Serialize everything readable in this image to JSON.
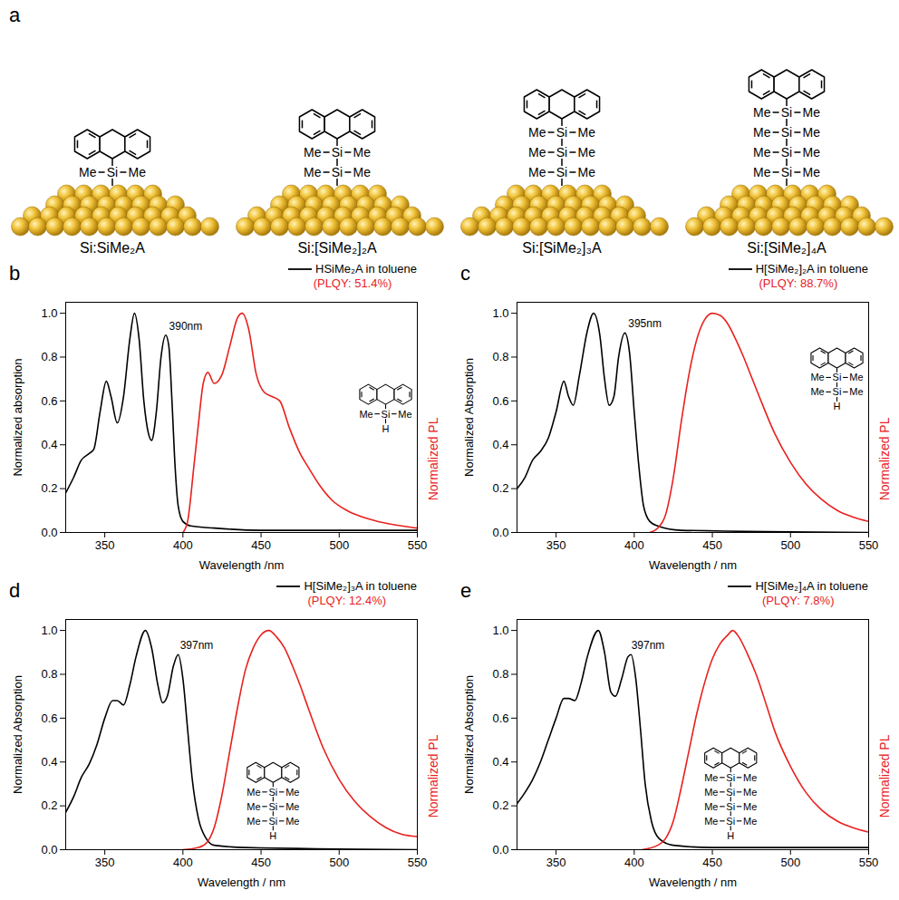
{
  "diagram": {
    "letter": "a",
    "side_group": "Me",
    "atom": "Si",
    "structures": [
      {
        "label": "Si:SiMe₂A",
        "units": 1
      },
      {
        "label": "Si:[SiMe₂]₂A",
        "units": 2
      },
      {
        "label": "Si:[SiMe₂]₃A",
        "units": 3
      },
      {
        "label": "Si:[SiMe₂]₄A",
        "units": 4
      }
    ]
  },
  "chart_data": [
    {
      "panel": "b",
      "type": "line",
      "xlabel": "Wavelength /nm",
      "ylabel": "Normalized absorption",
      "y2label": "Normalized PL",
      "xlim": [
        325,
        550
      ],
      "xticks": [
        350,
        400,
        450,
        500,
        550
      ],
      "ylim": [
        0,
        1.05
      ],
      "yticks": [
        {
          "value": 0,
          "label": "0.0"
        },
        0.2,
        0.4,
        0.6,
        0.8,
        {
          "value": 1,
          "label": "1.0"
        }
      ],
      "legend": "top-right",
      "series": [
        {
          "name": "HSiMe₂A in toluene",
          "color": "#000000",
          "x": [
            325,
            330,
            335,
            340,
            343,
            347,
            351,
            354,
            358,
            362,
            366,
            369,
            372,
            375,
            378,
            380,
            383,
            386,
            389,
            391,
            393,
            395,
            397,
            400,
            405,
            420,
            450,
            500,
            550
          ],
          "values": [
            0.18,
            0.25,
            0.33,
            0.36,
            0.38,
            0.55,
            0.69,
            0.62,
            0.5,
            0.62,
            0.88,
            1.0,
            0.88,
            0.6,
            0.45,
            0.42,
            0.55,
            0.8,
            0.9,
            0.85,
            0.6,
            0.3,
            0.12,
            0.05,
            0.03,
            0.02,
            0.01,
            0.01,
            0.01
          ]
        },
        {
          "color": "#e8211e",
          "x": [
            400,
            403,
            407,
            410,
            413,
            416,
            420,
            425,
            430,
            435,
            438,
            442,
            447,
            452,
            457,
            462,
            468,
            475,
            480,
            487,
            495,
            505,
            515,
            525,
            540,
            550
          ],
          "values": [
            0,
            0.05,
            0.3,
            0.5,
            0.68,
            0.73,
            0.68,
            0.72,
            0.85,
            0.98,
            1.0,
            0.93,
            0.72,
            0.64,
            0.62,
            0.6,
            0.48,
            0.36,
            0.3,
            0.22,
            0.15,
            0.1,
            0.07,
            0.05,
            0.03,
            0.02
          ]
        }
      ],
      "annotations": [
        {
          "text": "390nm",
          "x": 390,
          "y": 0.9
        },
        {
          "text": "(PLQY: 51.4%)",
          "color": "#e8211e"
        }
      ],
      "inset": {
        "units": 1,
        "terminal": "H"
      }
    },
    {
      "panel": "c",
      "type": "line",
      "xlabel": "Wavelength / nm",
      "ylabel": "Normalized Absorption",
      "y2label": "Normalized PL",
      "xlim": [
        325,
        550
      ],
      "xticks": [
        350,
        400,
        450,
        500,
        550
      ],
      "ylim": [
        0,
        1.05
      ],
      "yticks": [
        {
          "value": 0,
          "label": "0.0"
        },
        0.2,
        0.4,
        0.6,
        0.8,
        {
          "value": 1,
          "label": "1.0"
        }
      ],
      "legend": "top-right",
      "series": [
        {
          "name": "H[SiMe₂]₂A in toluene",
          "color": "#000000",
          "x": [
            325,
            330,
            335,
            340,
            345,
            350,
            355,
            358,
            361,
            365,
            370,
            374,
            378,
            381,
            384,
            387,
            390,
            394,
            397,
            400,
            403,
            406,
            410,
            415,
            430,
            550
          ],
          "values": [
            0.2,
            0.25,
            0.33,
            0.37,
            0.43,
            0.55,
            0.69,
            0.62,
            0.58,
            0.72,
            0.92,
            1.0,
            0.9,
            0.7,
            0.58,
            0.62,
            0.8,
            0.91,
            0.82,
            0.55,
            0.3,
            0.12,
            0.05,
            0.03,
            0.01,
            0
          ]
        },
        {
          "color": "#e8211e",
          "x": [
            410,
            415,
            420,
            425,
            430,
            435,
            440,
            445,
            450,
            455,
            460,
            465,
            470,
            475,
            480,
            490,
            500,
            510,
            520,
            530,
            540,
            550
          ],
          "values": [
            0,
            0.02,
            0.08,
            0.25,
            0.5,
            0.72,
            0.88,
            0.97,
            1.0,
            0.99,
            0.95,
            0.88,
            0.8,
            0.71,
            0.62,
            0.45,
            0.32,
            0.22,
            0.15,
            0.1,
            0.07,
            0.05
          ]
        }
      ],
      "annotations": [
        {
          "text": "395nm",
          "x": 395,
          "y": 0.91
        },
        {
          "text": "(PLQY: 88.7%)",
          "color": "#e8211e"
        }
      ],
      "inset": {
        "units": 2,
        "terminal": "H"
      }
    },
    {
      "panel": "d",
      "type": "line",
      "xlabel": "Wavelength / nm",
      "ylabel": "Normalized Absorption",
      "y2label": "Normalized PL",
      "xlim": [
        325,
        550
      ],
      "xticks": [
        350,
        400,
        450,
        500,
        550
      ],
      "ylim": [
        0,
        1.05
      ],
      "yticks": [
        {
          "value": 0,
          "label": "0.0"
        },
        0.2,
        0.4,
        0.6,
        0.8,
        {
          "value": 1,
          "label": "1.0"
        }
      ],
      "legend": "top-right",
      "series": [
        {
          "name": "H[SiMe₂]₃A in toluene",
          "color": "#000000",
          "x": [
            325,
            330,
            335,
            340,
            345,
            350,
            355,
            358,
            362,
            366,
            370,
            376,
            380,
            384,
            387,
            390,
            394,
            397,
            400,
            403,
            406,
            410,
            415,
            420,
            440,
            550
          ],
          "values": [
            0.17,
            0.24,
            0.33,
            0.39,
            0.48,
            0.6,
            0.68,
            0.68,
            0.66,
            0.75,
            0.88,
            1.0,
            0.92,
            0.75,
            0.67,
            0.7,
            0.84,
            0.89,
            0.78,
            0.55,
            0.32,
            0.14,
            0.05,
            0.02,
            0.01,
            0
          ]
        },
        {
          "color": "#e8211e",
          "x": [
            400,
            410,
            415,
            420,
            425,
            430,
            435,
            440,
            445,
            450,
            455,
            460,
            465,
            470,
            475,
            480,
            490,
            500,
            510,
            520,
            530,
            540,
            550
          ],
          "values": [
            0,
            0.01,
            0.03,
            0.1,
            0.25,
            0.45,
            0.65,
            0.82,
            0.92,
            0.98,
            1.0,
            0.97,
            0.92,
            0.84,
            0.75,
            0.65,
            0.46,
            0.32,
            0.22,
            0.15,
            0.1,
            0.07,
            0.06
          ]
        }
      ],
      "annotations": [
        {
          "text": "397nm",
          "x": 397,
          "y": 0.89
        },
        {
          "text": "(PLQY: 12.4%)",
          "color": "#e8211e"
        }
      ],
      "inset": {
        "units": 3,
        "terminal": "H"
      }
    },
    {
      "panel": "e",
      "type": "line",
      "xlabel": "Wavelength / nm",
      "ylabel": "Normalized Absorption",
      "y2label": "Normalized PL",
      "xlim": [
        325,
        550
      ],
      "xticks": [
        350,
        400,
        450,
        500,
        550
      ],
      "ylim": [
        0,
        1.05
      ],
      "yticks": [
        {
          "value": 0,
          "label": "0.0"
        },
        0.2,
        0.4,
        0.6,
        0.8,
        {
          "value": 1,
          "label": "1.0"
        }
      ],
      "legend": "top-right",
      "series": [
        {
          "name": "H[SiMe₂]₄A in toluene",
          "color": "#000000",
          "x": [
            325,
            330,
            335,
            340,
            345,
            350,
            355,
            358,
            362,
            366,
            370,
            377,
            381,
            385,
            388,
            392,
            396,
            398,
            401,
            404,
            407,
            411,
            416,
            425,
            450,
            550
          ],
          "values": [
            0.21,
            0.26,
            0.32,
            0.4,
            0.5,
            0.6,
            0.69,
            0.69,
            0.68,
            0.76,
            0.88,
            1.0,
            0.9,
            0.72,
            0.7,
            0.78,
            0.88,
            0.89,
            0.78,
            0.55,
            0.3,
            0.13,
            0.05,
            0.02,
            0.01,
            0.01
          ]
        },
        {
          "color": "#e8211e",
          "x": [
            405,
            415,
            420,
            425,
            430,
            435,
            440,
            445,
            450,
            455,
            460,
            463,
            467,
            472,
            478,
            485,
            490,
            500,
            510,
            520,
            530,
            540,
            550
          ],
          "values": [
            0,
            0.02,
            0.05,
            0.13,
            0.28,
            0.45,
            0.62,
            0.76,
            0.87,
            0.94,
            0.98,
            1.0,
            0.97,
            0.9,
            0.8,
            0.65,
            0.54,
            0.38,
            0.26,
            0.18,
            0.13,
            0.1,
            0.08
          ]
        }
      ],
      "annotations": [
        {
          "text": "397nm",
          "x": 397,
          "y": 0.89
        },
        {
          "text": "(PLQY: 7.8%)",
          "color": "#e8211e"
        }
      ],
      "inset": {
        "units": 4,
        "terminal": "H"
      }
    }
  ]
}
